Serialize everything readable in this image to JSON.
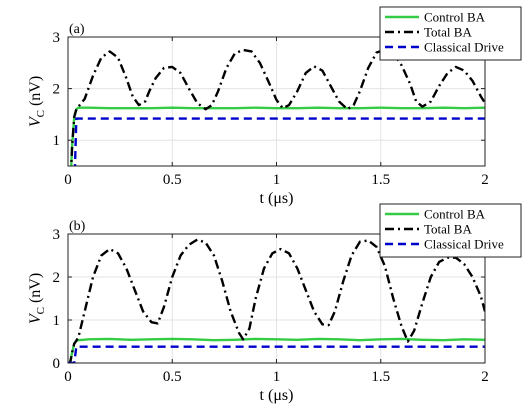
{
  "chart_data": [
    {
      "type": "line",
      "panel_label": "(a)",
      "xlabel": "t (μs)",
      "ylabel": "V_C (nV)",
      "xlim": [
        0,
        2
      ],
      "ylim": [
        0.5,
        3
      ],
      "xticks": [
        0,
        0.5,
        1,
        1.5,
        2
      ],
      "xtick_labels": [
        "0",
        "0.5",
        "1",
        "1.5",
        "2"
      ],
      "yticks": [
        1,
        2,
        3
      ],
      "ytick_labels": [
        "1",
        "2",
        "3"
      ],
      "grid": true,
      "legend": "top-right",
      "series": [
        {
          "name": "Control BA",
          "color": "#33cc44",
          "style": "solid",
          "x": [
            0,
            0.01,
            0.02,
            0.03,
            0.04,
            0.05,
            0.1,
            0.2,
            0.3,
            0.4,
            0.5,
            0.6,
            0.7,
            0.8,
            0.9,
            1.0,
            1.1,
            1.2,
            1.3,
            1.4,
            1.5,
            1.6,
            1.7,
            1.8,
            1.9,
            2.0
          ],
          "values": [
            0,
            0,
            0.9,
            1.45,
            1.6,
            1.63,
            1.63,
            1.62,
            1.62,
            1.62,
            1.63,
            1.62,
            1.62,
            1.62,
            1.63,
            1.62,
            1.62,
            1.63,
            1.62,
            1.62,
            1.63,
            1.62,
            1.62,
            1.63,
            1.62,
            1.63
          ]
        },
        {
          "name": "Total BA",
          "color": "#000000",
          "style": "dash-dot",
          "x": [
            0,
            0.01,
            0.02,
            0.03,
            0.04,
            0.05,
            0.08,
            0.12,
            0.16,
            0.2,
            0.24,
            0.28,
            0.31,
            0.34,
            0.37,
            0.39,
            0.42,
            0.46,
            0.5,
            0.54,
            0.58,
            0.62,
            0.66,
            0.69,
            0.72,
            0.76,
            0.8,
            0.84,
            0.88,
            0.92,
            0.96,
            1.0,
            1.03,
            1.06,
            1.1,
            1.14,
            1.18,
            1.22,
            1.26,
            1.3,
            1.34,
            1.37,
            1.4,
            1.44,
            1.48,
            1.52,
            1.56,
            1.6,
            1.64,
            1.67,
            1.7,
            1.74,
            1.78,
            1.82,
            1.86,
            1.9,
            1.94,
            1.98,
            2.0
          ],
          "values": [
            0,
            0,
            0.9,
            1.45,
            1.6,
            1.65,
            1.8,
            2.25,
            2.6,
            2.72,
            2.6,
            2.2,
            1.85,
            1.68,
            1.75,
            1.95,
            2.2,
            2.4,
            2.42,
            2.3,
            2.0,
            1.72,
            1.6,
            1.68,
            1.95,
            2.4,
            2.68,
            2.75,
            2.72,
            2.5,
            2.15,
            1.78,
            1.62,
            1.68,
            1.95,
            2.3,
            2.43,
            2.35,
            2.05,
            1.75,
            1.6,
            1.68,
            1.95,
            2.4,
            2.7,
            2.75,
            2.7,
            2.45,
            2.1,
            1.75,
            1.65,
            1.75,
            2.05,
            2.3,
            2.42,
            2.35,
            2.15,
            1.85,
            1.72
          ]
        },
        {
          "name": "Classical Drive",
          "color": "#0000cc",
          "style": "dashed",
          "x": [
            0.0,
            0.03,
            0.04,
            0.05,
            2.0
          ],
          "values": [
            0,
            0,
            1.42,
            1.42,
            1.42
          ]
        }
      ]
    },
    {
      "type": "line",
      "panel_label": "(b)",
      "xlabel": "t (μs)",
      "ylabel": "V_C (nV)",
      "xlim": [
        0,
        2
      ],
      "ylim": [
        0,
        3
      ],
      "xticks": [
        0,
        0.5,
        1,
        1.5,
        2
      ],
      "xtick_labels": [
        "0",
        "0.5",
        "1",
        "1.5",
        "2"
      ],
      "yticks": [
        0,
        1,
        2,
        3
      ],
      "ytick_labels": [
        "0",
        "1",
        "2",
        "3"
      ],
      "grid": true,
      "legend": "top-right",
      "series": [
        {
          "name": "Control BA",
          "color": "#33cc44",
          "style": "solid",
          "x": [
            0,
            0.01,
            0.02,
            0.03,
            0.04,
            0.05,
            0.1,
            0.2,
            0.3,
            0.4,
            0.5,
            0.6,
            0.7,
            0.8,
            0.9,
            1.0,
            1.1,
            1.2,
            1.3,
            1.4,
            1.5,
            1.6,
            1.7,
            1.8,
            1.9,
            2.0
          ],
          "values": [
            0,
            0,
            0.25,
            0.45,
            0.52,
            0.53,
            0.55,
            0.56,
            0.54,
            0.55,
            0.56,
            0.55,
            0.53,
            0.54,
            0.56,
            0.55,
            0.54,
            0.56,
            0.55,
            0.53,
            0.55,
            0.56,
            0.54,
            0.53,
            0.55,
            0.54
          ]
        },
        {
          "name": "Total BA",
          "color": "#000000",
          "style": "dash-dot",
          "x": [
            0,
            0.01,
            0.02,
            0.03,
            0.04,
            0.05,
            0.08,
            0.12,
            0.16,
            0.2,
            0.24,
            0.28,
            0.32,
            0.36,
            0.4,
            0.43,
            0.46,
            0.5,
            0.54,
            0.58,
            0.62,
            0.66,
            0.7,
            0.74,
            0.78,
            0.82,
            0.84,
            0.87,
            0.9,
            0.94,
            0.98,
            1.02,
            1.06,
            1.1,
            1.14,
            1.18,
            1.22,
            1.25,
            1.28,
            1.32,
            1.36,
            1.4,
            1.44,
            1.48,
            1.52,
            1.56,
            1.6,
            1.63,
            1.66,
            1.7,
            1.74,
            1.78,
            1.82,
            1.86,
            1.9,
            1.94,
            1.98,
            2.0
          ],
          "values": [
            0,
            0,
            0.25,
            0.45,
            0.52,
            0.6,
            1.2,
            2.0,
            2.5,
            2.65,
            2.55,
            2.2,
            1.7,
            1.2,
            0.95,
            0.92,
            1.3,
            2.0,
            2.5,
            2.75,
            2.87,
            2.8,
            2.5,
            1.9,
            1.2,
            0.7,
            0.55,
            0.8,
            1.5,
            2.2,
            2.55,
            2.65,
            2.55,
            2.2,
            1.7,
            1.2,
            0.9,
            0.88,
            1.2,
            1.9,
            2.5,
            2.82,
            2.85,
            2.7,
            2.25,
            1.5,
            0.85,
            0.5,
            0.75,
            1.4,
            2.0,
            2.35,
            2.45,
            2.45,
            2.3,
            2.0,
            1.55,
            1.2
          ]
        },
        {
          "name": "Classical Drive",
          "color": "#0000cc",
          "style": "dashed",
          "x": [
            0.0,
            0.03,
            0.04,
            0.05,
            2.0
          ],
          "values": [
            0,
            0,
            0.38,
            0.38,
            0.38
          ]
        }
      ]
    }
  ]
}
